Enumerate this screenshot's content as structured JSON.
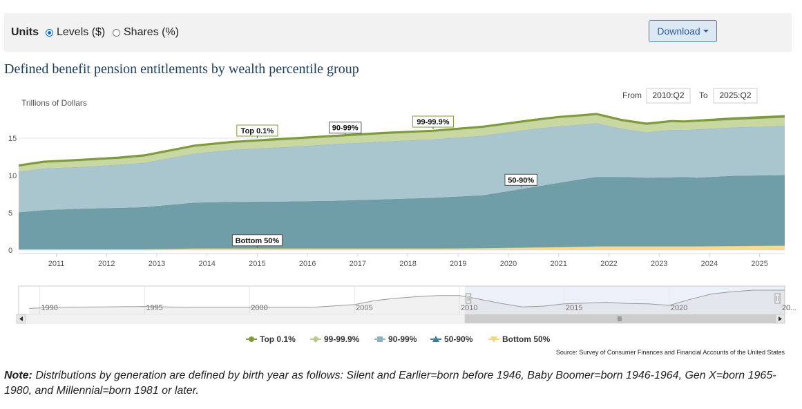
{
  "controls": {
    "units_label": "Units",
    "options": [
      {
        "label": "Levels ($)",
        "selected": true
      },
      {
        "label": "Shares (%)",
        "selected": false
      }
    ],
    "download_label": "Download"
  },
  "page_title": "Defined benefit pension entitlements by wealth percentile group",
  "range": {
    "from_label": "From",
    "from_value": "2010:Q2",
    "to_label": "To",
    "to_value": "2025:Q2"
  },
  "chart_data": {
    "type": "area",
    "stacked": true,
    "title": "Defined benefit pension entitlements by wealth percentile group",
    "ylabel": "Trillions of Dollars",
    "ylim": [
      0,
      20
    ],
    "yticks": [
      0,
      5,
      10,
      15
    ],
    "xlim": [
      2010.25,
      2025.5
    ],
    "xticks": [
      "2011",
      "2012",
      "2013",
      "2014",
      "2015",
      "2016",
      "2017",
      "2018",
      "2019",
      "2020",
      "2021",
      "2022",
      "2023",
      "2024",
      "2025"
    ],
    "x": [
      2010.25,
      2010.75,
      2011.5,
      2012.25,
      2012.75,
      2013.75,
      2014.5,
      2015.5,
      2016.5,
      2017.5,
      2018.5,
      2019.5,
      2020.0,
      2020.5,
      2021.0,
      2021.5,
      2021.75,
      2022.25,
      2022.75,
      2023.25,
      2023.5,
      2023.75,
      2024.5,
      2025.5
    ],
    "series": [
      {
        "name": "Bottom 50%",
        "color": "#f5dd8c",
        "values": [
          0.1,
          0.1,
          0.1,
          0.1,
          0.1,
          0.2,
          0.2,
          0.2,
          0.2,
          0.2,
          0.2,
          0.25,
          0.3,
          0.35,
          0.4,
          0.45,
          0.5,
          0.5,
          0.5,
          0.5,
          0.5,
          0.5,
          0.55,
          0.6
        ]
      },
      {
        "name": "50-90%",
        "color": "#6f9ea8",
        "values": [
          4.95,
          5.25,
          5.45,
          5.55,
          5.65,
          6.15,
          6.25,
          6.3,
          6.4,
          6.6,
          6.8,
          7.1,
          7.6,
          8.1,
          8.6,
          9.1,
          9.3,
          9.3,
          9.2,
          9.25,
          9.3,
          9.2,
          9.4,
          9.45
        ]
      },
      {
        "name": "90-99%",
        "color": "#a9c5ce",
        "values": [
          5.45,
          5.6,
          5.6,
          5.8,
          5.95,
          6.6,
          7.0,
          7.3,
          7.6,
          7.75,
          7.85,
          8.0,
          7.9,
          7.8,
          7.6,
          7.3,
          7.2,
          6.5,
          6.1,
          6.4,
          6.3,
          6.5,
          6.5,
          6.6
        ]
      },
      {
        "name": "99-99.9%",
        "color": "#c8d8a0",
        "values": [
          0.7,
          0.75,
          0.8,
          0.8,
          0.85,
          0.9,
          0.9,
          0.95,
          0.95,
          1.0,
          1.0,
          1.05,
          1.05,
          1.05,
          1.1,
          1.1,
          1.1,
          1.0,
          1.0,
          1.0,
          1.0,
          1.0,
          1.0,
          1.1
        ]
      },
      {
        "name": "Top 0.1%",
        "color": "#7e9a3c",
        "values": [
          0.2,
          0.2,
          0.2,
          0.2,
          0.2,
          0.2,
          0.2,
          0.2,
          0.2,
          0.2,
          0.2,
          0.2,
          0.2,
          0.2,
          0.2,
          0.2,
          0.2,
          0.2,
          0.2,
          0.2,
          0.2,
          0.2,
          0.25,
          0.25
        ]
      }
    ],
    "annotations": [
      {
        "text": "Top 0.1%",
        "x": 2015.0,
        "y": 15.0
      },
      {
        "text": "90-99%",
        "x": 2016.75,
        "y": 15.4
      },
      {
        "text": "99-99.9%",
        "x": 2018.5,
        "y": 16.2
      },
      {
        "text": "50-90%",
        "x": 2020.25,
        "y": 8.4
      },
      {
        "text": "Bottom 50%",
        "x": 2015.0,
        "y": 0.3
      }
    ],
    "legend": [
      {
        "name": "Top 0.1%",
        "color": "#7e9a3c",
        "marker": "circle"
      },
      {
        "name": "99-99.9%",
        "color": "#b7c98e",
        "marker": "diamond"
      },
      {
        "name": "90-99%",
        "color": "#8fb0bd",
        "marker": "square"
      },
      {
        "name": "50-90%",
        "color": "#3e7c8e",
        "marker": "triangle"
      },
      {
        "name": "Bottom 50%",
        "color": "#f5d77a",
        "marker": "triangle-down"
      }
    ],
    "navigator": {
      "labels": [
        "1990",
        "1995",
        "2000",
        "2005",
        "2010",
        "2015",
        "2020",
        "20..."
      ],
      "label_years": [
        1990,
        1995,
        2000,
        2005,
        2010,
        2015,
        2020,
        2025.3
      ],
      "xlim": [
        1989,
        2025.5
      ],
      "selected_range": [
        2010.25,
        2025.5
      ],
      "x": [
        1989.5,
        1991,
        1993,
        1995,
        1997,
        2000,
        2003,
        2005,
        2006,
        2007,
        2008,
        2009,
        2010,
        2011,
        2012,
        2013,
        2014,
        2015,
        2016,
        2017,
        2018,
        2019,
        2020,
        2021,
        2022,
        2023,
        2024,
        2025.5
      ],
      "values": [
        1.2,
        1.5,
        1.6,
        1.7,
        1.5,
        1.5,
        1.5,
        2.2,
        3.3,
        3.9,
        4.3,
        4.6,
        4.6,
        3.6,
        2.5,
        1.6,
        1.8,
        2.4,
        2.6,
        2.8,
        2.5,
        2.4,
        2.0,
        3.6,
        5.0,
        5.6,
        6.0,
        6.0
      ]
    },
    "source": "Source: Survey of Consumer Finances and Financial Accounts of the United States"
  },
  "note": {
    "label": "Note:",
    "text": " Distributions by generation are defined by birth year as follows: Silent and Earlier=born before 1946, Baby Boomer=born 1946-1964, Gen X=born 1965-1980, and Millennial=born 1981 or later."
  }
}
